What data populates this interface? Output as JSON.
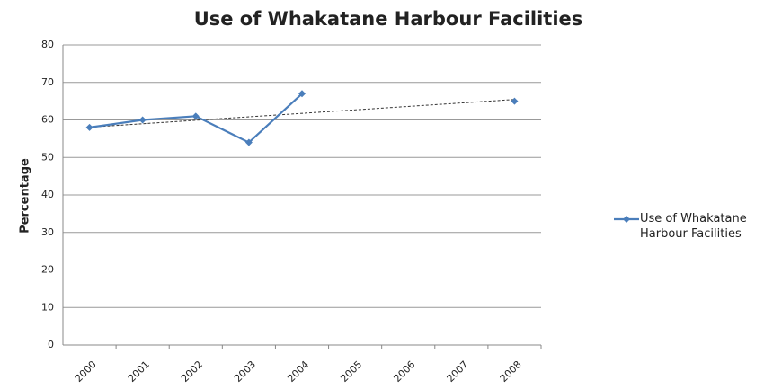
{
  "chart_data": {
    "type": "line",
    "title": "Use of Whakatane Harbour Facilities",
    "y_label": "Percentage",
    "categories": [
      "2000",
      "2001",
      "2002",
      "2003",
      "2004",
      "2005",
      "2006",
      "2007",
      "2008"
    ],
    "series": [
      {
        "name": "Use of Whakatane Harbour Facilities",
        "color": "#4a7ebb",
        "values": [
          58,
          60,
          61,
          54,
          67,
          null,
          null,
          null,
          65
        ]
      }
    ],
    "ylim": [
      0,
      80
    ],
    "yticks": [
      0,
      10,
      20,
      30,
      40,
      50,
      60,
      70,
      80
    ],
    "grid": true,
    "legend": "right",
    "trendline": "linear"
  }
}
